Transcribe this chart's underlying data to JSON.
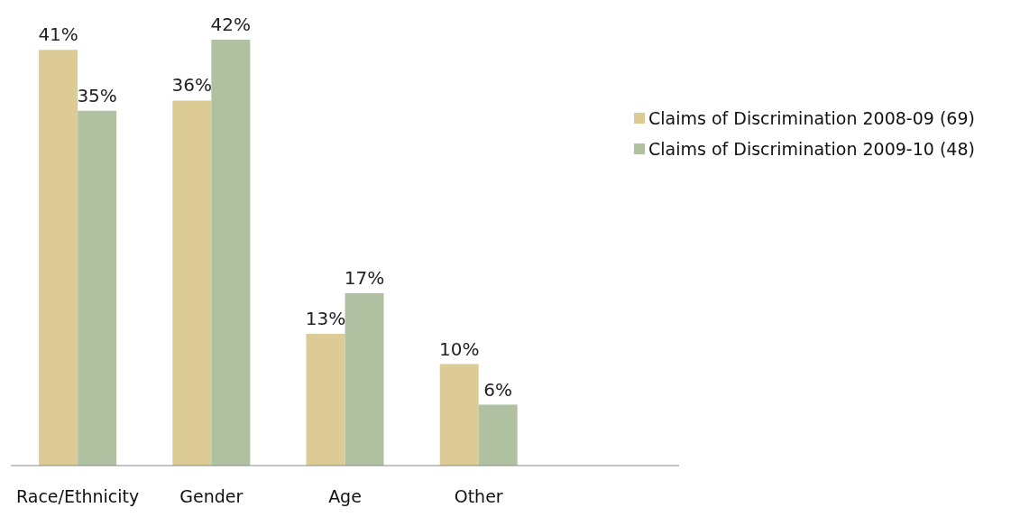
{
  "chart_data": {
    "type": "bar",
    "categories": [
      "Race/Ethnicity",
      "Gender",
      "Age",
      "Other",
      null
    ],
    "series": [
      {
        "name": "Claims of Discrimination 2008-09 (69)",
        "color": "#dccb95",
        "values": [
          41,
          36,
          13,
          10,
          null
        ],
        "value_labels": [
          "41%",
          "36%",
          "13%",
          "10%",
          null
        ]
      },
      {
        "name": "Claims of Discrimination 2009-10 (48)",
        "color": "#b0c1a2",
        "values": [
          35,
          42,
          17,
          6,
          null
        ],
        "value_labels": [
          "35%",
          "42%",
          "17%",
          "6%",
          null
        ]
      }
    ],
    "legend": "right",
    "grid": false
  }
}
